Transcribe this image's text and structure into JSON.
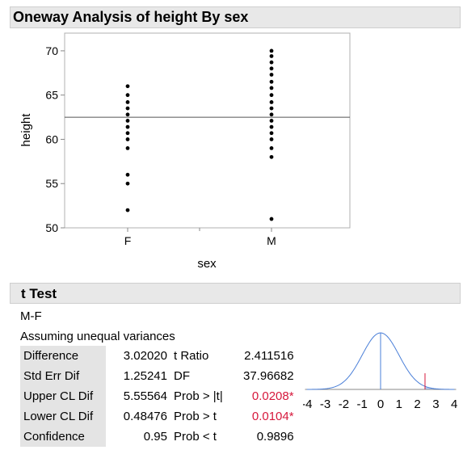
{
  "report_title": "Oneway Analysis of height By sex",
  "chart_data": {
    "type": "scatter",
    "xlabel": "sex",
    "ylabel": "height",
    "categories": [
      "F",
      "M"
    ],
    "ylim": [
      50,
      72
    ],
    "yticks": [
      50,
      55,
      60,
      65,
      70
    ],
    "mean_line": 62.5,
    "series": [
      {
        "category": "F",
        "values": [
          52,
          55,
          56,
          59,
          60,
          60.7,
          61.4,
          62.1,
          62.8,
          63.5,
          64.2,
          65,
          66
        ]
      },
      {
        "category": "M",
        "values": [
          51,
          58,
          59,
          60,
          60.7,
          61.4,
          62.1,
          62.8,
          63.5,
          64.2,
          65,
          65.8,
          66.5,
          67.3,
          68,
          68.7,
          69.4,
          70
        ]
      }
    ]
  },
  "ttest": {
    "title": "t Test",
    "comparison": "M-F",
    "assumption": "Assuming unequal variances",
    "rows": [
      {
        "label": "Difference",
        "value": "3.02020",
        "stat": "t Ratio",
        "stat_value": "2.411516",
        "sig": ""
      },
      {
        "label": "Std Err Dif",
        "value": "1.25241",
        "stat": "DF",
        "stat_value": "37.96682",
        "sig": ""
      },
      {
        "label": "Upper CL Dif",
        "value": "5.55564",
        "stat": "Prob > |t|",
        "stat_value": "0.0208",
        "sig": "*"
      },
      {
        "label": "Lower CL Dif",
        "value": "0.48476",
        "stat": "Prob > t",
        "stat_value": "0.0104",
        "sig": "*"
      },
      {
        "label": "Confidence",
        "value": "0.95",
        "stat": "Prob < t",
        "stat_value": "0.9896",
        "sig": ""
      }
    ],
    "dist_plot": {
      "ticks": [
        -4,
        -3,
        -2,
        -1,
        0,
        1,
        2,
        3,
        4
      ],
      "t_ratio": 2.411516,
      "curve_color": "#4a7fd8",
      "marker_color": "#d6183c"
    }
  }
}
